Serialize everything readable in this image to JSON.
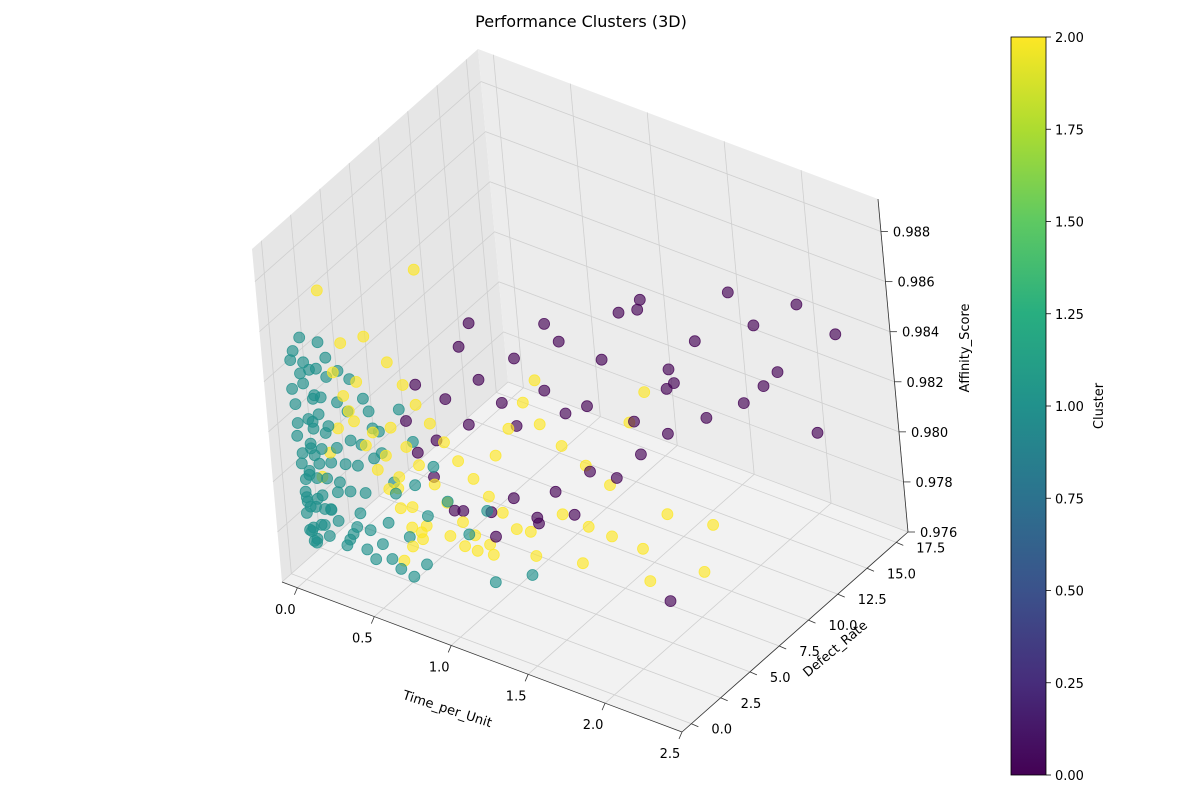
{
  "chart_data": {
    "type": "scatter",
    "projection": "3d",
    "title": "Performance Clusters (3D)",
    "xlabel": "Time_per_Unit",
    "ylabel": "Defect_Rate",
    "zlabel": "Affinity_Score",
    "xlim": [
      -0.1,
      2.5
    ],
    "ylim": [
      -0.8,
      18.5
    ],
    "zlim": [
      0.976,
      0.9893
    ],
    "x_ticks": [
      "0.0",
      "0.5",
      "1.0",
      "1.5",
      "2.0",
      "2.5"
    ],
    "y_ticks": [
      "0.0",
      "2.5",
      "5.0",
      "7.5",
      "10.0",
      "12.5",
      "15.0",
      "17.5"
    ],
    "z_ticks": [
      "0.976",
      "0.978",
      "0.980",
      "0.982",
      "0.984",
      "0.986",
      "0.988"
    ],
    "grid": true,
    "colormap": "viridis",
    "colorbar": {
      "label": "Cluster",
      "range": [
        0,
        2
      ],
      "ticks": [
        "0.00",
        "0.25",
        "0.50",
        "0.75",
        "1.00",
        "1.25",
        "1.50",
        "1.75",
        "2.00"
      ]
    },
    "series": [
      {
        "cluster": 0,
        "color": "#440154",
        "points": [
          [
            2.25,
            17.1,
            0.9839
          ],
          [
            2.1,
            16.0,
            0.9852
          ],
          [
            2.0,
            15.2,
            0.9826
          ],
          [
            1.85,
            13.6,
            0.9861
          ],
          [
            1.7,
            12.4,
            0.9843
          ],
          [
            2.3,
            14.4,
            0.9812
          ],
          [
            1.6,
            11.3,
            0.9834
          ],
          [
            1.5,
            12.8,
            0.982
          ],
          [
            1.4,
            10.1,
            0.9857
          ],
          [
            1.3,
            9.6,
            0.9838
          ],
          [
            1.25,
            8.7,
            0.9822
          ],
          [
            1.15,
            8.1,
            0.9848
          ],
          [
            1.1,
            7.2,
            0.9831
          ],
          [
            1.05,
            9.3,
            0.9812
          ],
          [
            0.95,
            6.8,
            0.9842
          ],
          [
            0.9,
            6.1,
            0.9826
          ],
          [
            0.85,
            7.7,
            0.9809
          ],
          [
            0.8,
            5.6,
            0.9835
          ],
          [
            0.75,
            5.1,
            0.9818
          ],
          [
            0.7,
            6.4,
            0.9852
          ],
          [
            0.65,
            4.6,
            0.9828
          ],
          [
            0.6,
            4.2,
            0.9812
          ],
          [
            1.35,
            7.3,
            0.9804
          ],
          [
            1.2,
            6.2,
            0.9797
          ],
          [
            1.0,
            5.2,
            0.9794
          ],
          [
            0.9,
            4.5,
            0.9789
          ],
          [
            1.45,
            8.2,
            0.98
          ],
          [
            1.55,
            9.1,
            0.9808
          ],
          [
            1.65,
            10.2,
            0.9814
          ],
          [
            1.8,
            11.6,
            0.9818
          ],
          [
            1.95,
            12.9,
            0.9822
          ],
          [
            0.55,
            3.5,
            0.9836
          ],
          [
            0.5,
            3.1,
            0.9822
          ],
          [
            1.12,
            5.6,
            0.9785
          ],
          [
            0.78,
            3.7,
            0.979
          ],
          [
            1.28,
            6.6,
            0.9788
          ],
          [
            0.68,
            2.8,
            0.9805
          ],
          [
            0.95,
            4.1,
            0.9782
          ],
          [
            1.6,
            8.2,
            0.9826
          ],
          [
            1.72,
            9.6,
            0.9836
          ],
          [
            2.4,
            0.4,
            0.9805
          ],
          [
            1.9,
            14.8,
            0.9844
          ],
          [
            1.4,
            11.6,
            0.9852
          ],
          [
            1.02,
            8.6,
            0.985
          ],
          [
            0.72,
            5.2,
            0.9848
          ],
          [
            1.18,
            4.8,
            0.9792
          ],
          [
            0.85,
            2.2,
            0.9798
          ],
          [
            1.5,
            10.7,
            0.9862
          ],
          [
            2.05,
            13.4,
            0.9829
          ],
          [
            0.62,
            2.4,
            0.9815
          ]
        ]
      },
      {
        "cluster": 1,
        "color": "#21918c",
        "points": [
          [
            0.01,
            0.08,
            0.9836
          ],
          [
            0.02,
            0.12,
            0.983
          ],
          [
            0.03,
            0.05,
            0.9823
          ],
          [
            0.01,
            0.15,
            0.9817
          ],
          [
            0.04,
            0.1,
            0.9811
          ],
          [
            0.02,
            0.2,
            0.9806
          ],
          [
            0.05,
            0.06,
            0.9801
          ],
          [
            0.03,
            0.18,
            0.9795
          ],
          [
            0.06,
            0.12,
            0.979
          ],
          [
            0.02,
            0.25,
            0.9786
          ],
          [
            0.07,
            0.09,
            0.9782
          ],
          [
            0.04,
            0.3,
            0.9779
          ],
          [
            0.08,
            0.14,
            0.9776
          ],
          [
            0.05,
            0.35,
            0.9842
          ],
          [
            0.09,
            0.2,
            0.9848
          ],
          [
            0.06,
            0.4,
            0.9838
          ],
          [
            0.1,
            0.1,
            0.9826
          ],
          [
            0.07,
            0.45,
            0.9814
          ],
          [
            0.11,
            0.25,
            0.9802
          ],
          [
            0.08,
            0.5,
            0.9792
          ],
          [
            0.12,
            0.15,
            0.9784
          ],
          [
            0.09,
            0.55,
            0.982
          ],
          [
            0.13,
            0.3,
            0.9808
          ],
          [
            0.1,
            0.6,
            0.9832
          ],
          [
            0.14,
            0.2,
            0.9796
          ],
          [
            0.11,
            0.65,
            0.9788
          ],
          [
            0.15,
            0.35,
            0.9828
          ],
          [
            0.12,
            0.7,
            0.9812
          ],
          [
            0.16,
            0.25,
            0.978
          ],
          [
            0.13,
            0.8,
            0.98
          ],
          [
            0.17,
            0.4,
            0.9835
          ],
          [
            0.14,
            0.9,
            0.9818
          ],
          [
            0.18,
            0.3,
            0.9791
          ],
          [
            0.15,
            1.0,
            0.9806
          ],
          [
            0.2,
            0.45,
            0.9824
          ],
          [
            0.16,
            1.1,
            0.984
          ],
          [
            0.22,
            0.35,
            0.9787
          ],
          [
            0.18,
            1.2,
            0.9798
          ],
          [
            0.24,
            0.5,
            0.9816
          ],
          [
            0.2,
            1.3,
            0.983
          ],
          [
            0.26,
            0.4,
            0.9778
          ],
          [
            0.22,
            1.5,
            0.9794
          ],
          [
            0.28,
            0.6,
            0.981
          ],
          [
            0.24,
            1.6,
            0.9826
          ],
          [
            0.3,
            0.5,
            0.9783
          ],
          [
            0.26,
            1.8,
            0.9804
          ],
          [
            0.32,
            0.7,
            0.982
          ],
          [
            0.28,
            2.0,
            0.9812
          ],
          [
            0.35,
            0.6,
            0.9792
          ],
          [
            0.3,
            2.2,
            0.983
          ],
          [
            0.38,
            0.8,
            0.98
          ],
          [
            0.33,
            2.4,
            0.9818
          ],
          [
            0.4,
            0.7,
            0.9786
          ],
          [
            0.36,
            2.6,
            0.9808
          ],
          [
            0.45,
            0.9,
            0.9815
          ],
          [
            0.4,
            2.9,
            0.9796
          ],
          [
            0.5,
            1.0,
            0.979
          ],
          [
            0.45,
            3.2,
            0.9825
          ],
          [
            0.55,
            1.2,
            0.9802
          ],
          [
            0.5,
            3.5,
            0.9812
          ],
          [
            0.6,
            1.4,
            0.9785
          ],
          [
            0.65,
            1.6,
            0.9806
          ],
          [
            0.7,
            1.8,
            0.9794
          ],
          [
            0.75,
            2.0,
            0.9814
          ],
          [
            0.8,
            2.3,
            0.98
          ],
          [
            0.9,
            2.6,
            0.9788
          ],
          [
            1.0,
            3.0,
            0.9798
          ],
          [
            0.05,
            0.0,
            0.9794
          ],
          [
            0.08,
            0.05,
            0.9805
          ],
          [
            0.12,
            0.1,
            0.9812
          ],
          [
            0.02,
            0.02,
            0.9848
          ],
          [
            0.04,
            0.04,
            0.9852
          ],
          [
            0.07,
            0.3,
            0.9857
          ],
          [
            0.1,
            0.5,
            0.9844
          ],
          [
            0.06,
            0.2,
            0.9776
          ],
          [
            0.09,
            0.08,
            0.9778
          ],
          [
            0.15,
            0.05,
            0.9785
          ],
          [
            0.2,
            0.1,
            0.9792
          ],
          [
            0.25,
            0.15,
            0.98
          ],
          [
            0.3,
            0.2,
            0.9782
          ],
          [
            0.35,
            0.25,
            0.9788
          ],
          [
            0.4,
            0.3,
            0.978
          ],
          [
            0.45,
            0.35,
            0.9777
          ],
          [
            0.5,
            0.4,
            0.9784
          ],
          [
            0.55,
            0.45,
            0.9779
          ],
          [
            0.6,
            0.5,
            0.9776
          ],
          [
            1.1,
            2.0,
            0.9776
          ],
          [
            1.3,
            2.6,
            0.9781
          ],
          [
            0.7,
            0.3,
            0.9776
          ],
          [
            0.75,
            0.8,
            0.978
          ],
          [
            0.18,
            1.8,
            0.984
          ],
          [
            0.22,
            2.2,
            0.9836
          ],
          [
            0.14,
            1.4,
            0.9846
          ],
          [
            0.28,
            2.8,
            0.9822
          ],
          [
            0.32,
            3.0,
            0.9814
          ],
          [
            0.02,
            0.4,
            0.979
          ],
          [
            0.03,
            0.6,
            0.98
          ],
          [
            0.04,
            0.8,
            0.981
          ],
          [
            0.05,
            1.0,
            0.982
          ],
          [
            0.06,
            1.2,
            0.983
          ],
          [
            0.07,
            1.4,
            0.984
          ],
          [
            0.08,
            1.6,
            0.985
          ],
          [
            0.03,
            0.9,
            0.9786
          ],
          [
            0.01,
            0.5,
            0.9778
          ]
        ]
      },
      {
        "cluster": 2,
        "color": "#fde725",
        "points": [
          [
            0.4,
            1.5,
            0.986
          ],
          [
            0.5,
            2.0,
            0.985
          ],
          [
            0.55,
            2.5,
            0.984
          ],
          [
            0.6,
            2.8,
            0.9832
          ],
          [
            0.65,
            3.2,
            0.9824
          ],
          [
            0.7,
            3.6,
            0.9816
          ],
          [
            0.75,
            4.0,
            0.9808
          ],
          [
            0.8,
            4.5,
            0.98
          ],
          [
            0.85,
            5.0,
            0.9792
          ],
          [
            0.9,
            5.4,
            0.9785
          ],
          [
            0.95,
            5.8,
            0.9778
          ],
          [
            1.0,
            6.3,
            0.9776
          ],
          [
            0.45,
            2.6,
            0.9796
          ],
          [
            0.5,
            3.0,
            0.9788
          ],
          [
            0.55,
            3.4,
            0.978
          ],
          [
            0.35,
            1.2,
            0.9842
          ],
          [
            0.3,
            1.0,
            0.983
          ],
          [
            0.38,
            1.8,
            0.982
          ],
          [
            0.42,
            2.2,
            0.981
          ],
          [
            0.48,
            2.4,
            0.9802
          ],
          [
            0.52,
            1.6,
            0.9826
          ],
          [
            0.58,
            2.0,
            0.9818
          ],
          [
            0.62,
            2.4,
            0.981
          ],
          [
            0.68,
            2.8,
            0.9802
          ],
          [
            0.72,
            3.2,
            0.9794
          ],
          [
            0.78,
            3.6,
            0.9786
          ],
          [
            0.82,
            4.0,
            0.978
          ],
          [
            0.88,
            4.4,
            0.9776
          ],
          [
            0.3,
            0.8,
            0.9858
          ],
          [
            0.25,
            0.6,
            0.9846
          ],
          [
            0.28,
            0.9,
            0.9836
          ],
          [
            0.32,
            1.1,
            0.9826
          ],
          [
            0.36,
            1.4,
            0.9816
          ],
          [
            0.4,
            1.7,
            0.9806
          ],
          [
            0.44,
            2.0,
            0.9798
          ],
          [
            0.48,
            2.3,
            0.979
          ],
          [
            0.52,
            2.6,
            0.9782
          ],
          [
            0.56,
            2.9,
            0.9777
          ],
          [
            1.2,
            7.0,
            0.9812
          ],
          [
            1.3,
            7.6,
            0.9804
          ],
          [
            1.4,
            8.2,
            0.9796
          ],
          [
            1.1,
            6.6,
            0.982
          ],
          [
            1.25,
            6.0,
            0.979
          ],
          [
            1.35,
            6.8,
            0.9784
          ],
          [
            1.45,
            7.4,
            0.978
          ],
          [
            1.6,
            8.0,
            0.9776
          ],
          [
            1.7,
            9.0,
            0.9788
          ],
          [
            1.8,
            6.0,
            0.9776
          ],
          [
            2.0,
            8.0,
            0.9776
          ],
          [
            1.95,
            9.6,
            0.9787
          ],
          [
            1.5,
            9.0,
            0.982
          ],
          [
            1.55,
            9.8,
            0.983
          ],
          [
            0.6,
            0.8,
            0.9778
          ],
          [
            0.65,
            1.0,
            0.9784
          ],
          [
            0.7,
            1.2,
            0.979
          ],
          [
            0.2,
            0.5,
            0.9878
          ],
          [
            0.55,
            4.2,
            0.9879
          ],
          [
            0.1,
            0.8,
            0.98
          ],
          [
            0.15,
            1.0,
            0.981
          ],
          [
            0.2,
            1.2,
            0.982
          ],
          [
            0.92,
            5.0,
            0.981
          ],
          [
            0.98,
            5.5,
            0.982
          ],
          [
            1.05,
            6.0,
            0.983
          ],
          [
            1.1,
            6.5,
            0.9838
          ],
          [
            0.78,
            2.5,
            0.9785
          ],
          [
            0.83,
            3.0,
            0.978
          ],
          [
            0.87,
            3.5,
            0.9777
          ],
          [
            1.15,
            4.8,
            0.9776
          ],
          [
            0.95,
            3.8,
            0.9776
          ],
          [
            1.4,
            5.5,
            0.9776
          ]
        ]
      }
    ]
  }
}
